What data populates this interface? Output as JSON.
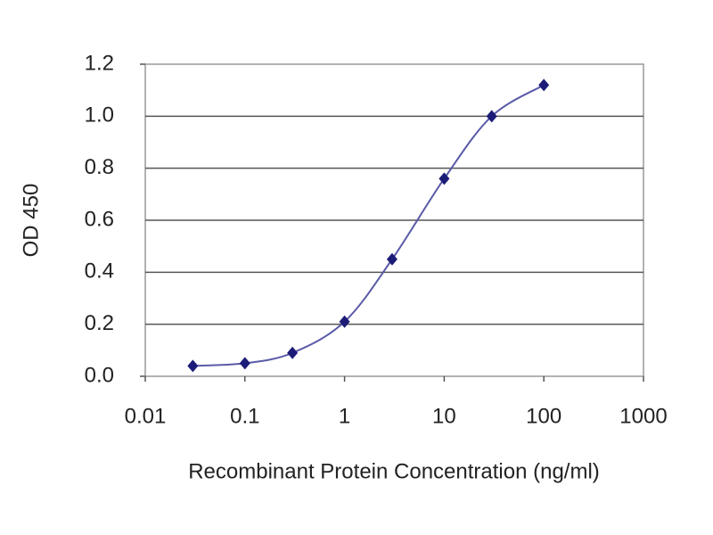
{
  "chart_data": {
    "type": "line",
    "x_label": "Recombinant Protein Concentration (ng/ml)",
    "y_label": "OD 450",
    "x": [
      0.03,
      0.1,
      0.3,
      1,
      3,
      10,
      30,
      100
    ],
    "series": [
      {
        "color": "#1c1c78",
        "values": [
          0.04,
          0.05,
          0.09,
          0.21,
          0.45,
          0.76,
          1.0,
          1.12
        ]
      }
    ],
    "xlog": true,
    "xlim": [
      0.01,
      1000
    ],
    "xticks": [
      0.01,
      0.1,
      1,
      10,
      100,
      1000
    ],
    "ylim": [
      0,
      1.2
    ],
    "yticks": [
      {
        "value": 0,
        "label": "0.0"
      },
      0.2,
      0.4,
      0.6,
      0.8,
      {
        "value": 1,
        "label": "1.0"
      },
      1.2
    ],
    "grid": true
  }
}
